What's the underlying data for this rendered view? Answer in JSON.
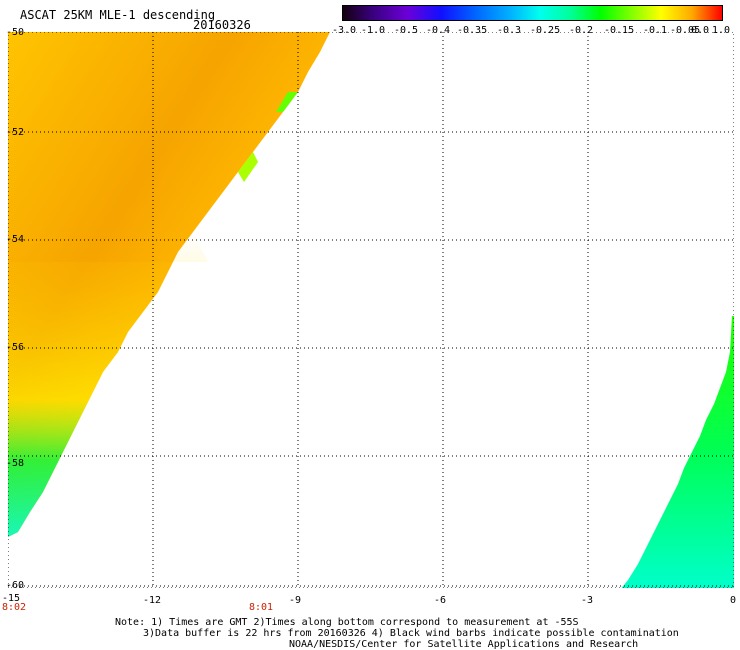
{
  "header": {
    "title": "ASCAT 25KM MLE-1 descending",
    "date": "20160326"
  },
  "colorbar": {
    "labels": [
      "-3.0",
      "-1.0",
      "-0.5",
      "-0.4",
      "-0.35",
      "-0.3",
      "-0.25",
      "-0.2",
      "-0.15",
      "-0.1",
      "-0.05",
      "0.0",
      "1.0"
    ],
    "colors": [
      "#150010",
      "#3a0080",
      "#6b00d8",
      "#1010ff",
      "#0066ff",
      "#00b0ff",
      "#00ffee",
      "#00ff99",
      "#00ff00",
      "#80ff00",
      "#ffff00",
      "#ffaa00",
      "#ff0000"
    ]
  },
  "map": {
    "lat_labels": [
      "-50",
      "-52",
      "-54",
      "-56",
      "-58",
      "-60"
    ],
    "lon_labels": [
      "-15",
      "-12",
      "-9",
      "-6",
      "-3",
      "0"
    ],
    "time_labels": [
      "8:02",
      "8:01"
    ]
  },
  "notes": [
    "Note: 1) Times are GMT 2)Times along bottom correspond to measurement at -55S",
    "3)Data buffer is 22 hrs from 20160326 4) Black wind barbs indicate possible contamination",
    "NOAA/NESDIS/Center for Satellite Applications and Research"
  ]
}
